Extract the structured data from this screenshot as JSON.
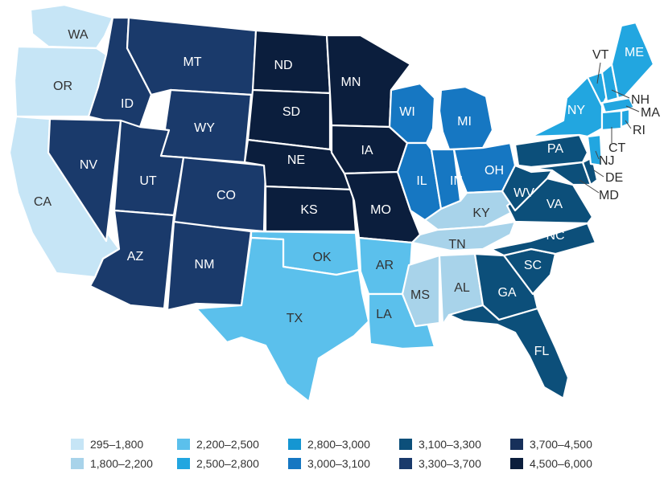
{
  "legend": [
    {
      "label": "295–1,800",
      "color": "#c6e5f6"
    },
    {
      "label": "2,200–2,500",
      "color": "#5bc0ec"
    },
    {
      "label": "2,800–3,000",
      "color": "#1596d2"
    },
    {
      "label": "3,100–3,300",
      "color": "#0c4f7a"
    },
    {
      "label": "3,700–4,500",
      "color": "#17305a"
    },
    {
      "label": "1,800–2,200",
      "color": "#a8d3ea"
    },
    {
      "label": "2,500–2,800",
      "color": "#22a6e0"
    },
    {
      "label": "3,000–3,100",
      "color": "#1677c2"
    },
    {
      "label": "3,300–3,700",
      "color": "#1a3a6b"
    },
    {
      "label": "4,500–6,000",
      "color": "#0b1e3d"
    }
  ],
  "states": [
    {
      "abbr": "WA",
      "bin": 0
    },
    {
      "abbr": "OR",
      "bin": 0
    },
    {
      "abbr": "CA",
      "bin": 0
    },
    {
      "abbr": "ID",
      "bin": 8
    },
    {
      "abbr": "MT",
      "bin": 8
    },
    {
      "abbr": "WY",
      "bin": 8
    },
    {
      "abbr": "NV",
      "bin": 8
    },
    {
      "abbr": "UT",
      "bin": 8
    },
    {
      "abbr": "CO",
      "bin": 8
    },
    {
      "abbr": "AZ",
      "bin": 8
    },
    {
      "abbr": "NM",
      "bin": 8
    },
    {
      "abbr": "ND",
      "bin": 9
    },
    {
      "abbr": "SD",
      "bin": 9
    },
    {
      "abbr": "NE",
      "bin": 9
    },
    {
      "abbr": "KS",
      "bin": 9
    },
    {
      "abbr": "MN",
      "bin": 9
    },
    {
      "abbr": "IA",
      "bin": 9
    },
    {
      "abbr": "MO",
      "bin": 9
    },
    {
      "abbr": "OK",
      "bin": 1
    },
    {
      "abbr": "TX",
      "bin": 1
    },
    {
      "abbr": "AR",
      "bin": 1
    },
    {
      "abbr": "LA",
      "bin": 1
    },
    {
      "abbr": "WI",
      "bin": 7
    },
    {
      "abbr": "MI",
      "bin": 7
    },
    {
      "abbr": "IL",
      "bin": 7
    },
    {
      "abbr": "IN",
      "bin": 7
    },
    {
      "abbr": "OH",
      "bin": 7
    },
    {
      "abbr": "KY",
      "bin": 5
    },
    {
      "abbr": "TN",
      "bin": 5
    },
    {
      "abbr": "MS",
      "bin": 5
    },
    {
      "abbr": "AL",
      "bin": 5
    },
    {
      "abbr": "GA",
      "bin": 3
    },
    {
      "abbr": "SC",
      "bin": 3
    },
    {
      "abbr": "NC",
      "bin": 3
    },
    {
      "abbr": "FL",
      "bin": 3
    },
    {
      "abbr": "VA",
      "bin": 3
    },
    {
      "abbr": "WV",
      "bin": 3
    },
    {
      "abbr": "PA",
      "bin": 3
    },
    {
      "abbr": "MD",
      "bin": 3
    },
    {
      "abbr": "DE",
      "bin": 3
    },
    {
      "abbr": "NY",
      "bin": 6
    },
    {
      "abbr": "VT",
      "bin": 6
    },
    {
      "abbr": "NH",
      "bin": 6
    },
    {
      "abbr": "ME",
      "bin": 6
    },
    {
      "abbr": "MA",
      "bin": 6
    },
    {
      "abbr": "CT",
      "bin": 6
    },
    {
      "abbr": "RI",
      "bin": 6
    },
    {
      "abbr": "NJ",
      "bin": 6
    }
  ]
}
